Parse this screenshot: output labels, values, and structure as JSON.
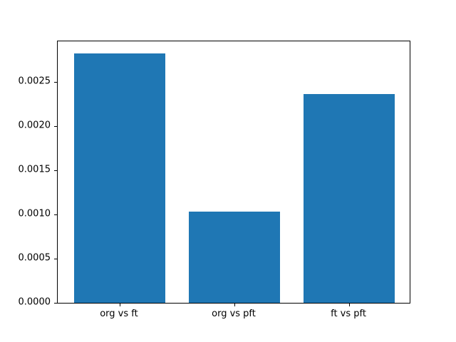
{
  "chart_data": {
    "type": "bar",
    "title": "",
    "xlabel": "",
    "ylabel": "",
    "categories": [
      "org vs ft",
      "org vs pft",
      "ft vs pft"
    ],
    "values": [
      0.00282,
      0.00103,
      0.00236
    ],
    "bar_color": "#1f77b4",
    "bar_width_units": 0.8,
    "xlim": [
      -0.54,
      2.54
    ],
    "ylim": [
      0,
      0.00296
    ],
    "yticks": [
      0.0,
      0.0005,
      0.001,
      0.0015,
      0.002,
      0.0025
    ],
    "ytick_labels": [
      "0.0000",
      "0.0005",
      "0.0010",
      "0.0015",
      "0.0020",
      "0.0025"
    ],
    "grid": false,
    "legend": "none",
    "background_color": "#ffffff",
    "frame_color": "#000000"
  }
}
